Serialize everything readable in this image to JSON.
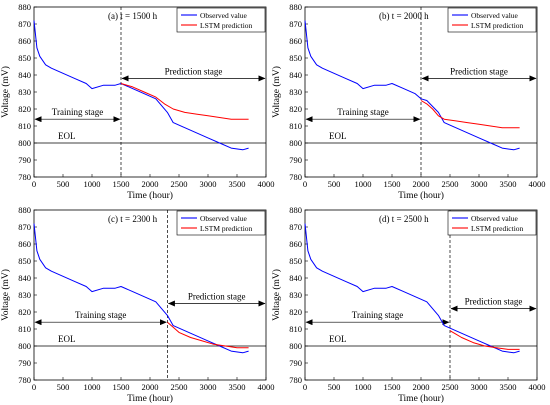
{
  "chart_data": [
    {
      "type": "line",
      "panel_label": "(a) t = 1500 h",
      "xlabel": "Time (hour)",
      "ylabel": "Voltage (mV)",
      "xlim": [
        0,
        4000
      ],
      "ylim": [
        780,
        880
      ],
      "xticks": [
        "0",
        "500",
        "1000",
        "1500",
        "2000",
        "2500",
        "3000",
        "3500",
        "4000"
      ],
      "yticks": [
        "780",
        "790",
        "800",
        "810",
        "820",
        "830",
        "840",
        "850",
        "860",
        "870",
        "880"
      ],
      "legend": {
        "position": "top-right",
        "entries": [
          "Observed value",
          "LSTM prediction"
        ]
      },
      "series": [
        {
          "name": "Observed value",
          "color": "#0000ff",
          "x": [
            0,
            50,
            100,
            200,
            300,
            500,
            700,
            900,
            1000,
            1200,
            1400,
            1500,
            1700,
            1900,
            2100,
            2300,
            2400,
            2600,
            2800,
            3000,
            3200,
            3400,
            3600,
            3700
          ],
          "y": [
            872,
            856,
            851,
            846,
            844,
            841,
            838,
            835,
            832,
            834,
            834,
            835,
            832,
            829,
            826,
            818,
            812,
            809,
            806,
            803,
            800,
            797,
            796,
            797
          ]
        },
        {
          "name": "LSTM prediction",
          "color": "#ff0000",
          "x": [
            1500,
            1700,
            1900,
            2100,
            2250,
            2400,
            2600,
            2800,
            3000,
            3200,
            3400,
            3600,
            3700
          ],
          "y": [
            835,
            833,
            830,
            827,
            823,
            820,
            818,
            817,
            816,
            815,
            814,
            814,
            814
          ]
        }
      ],
      "annotations": {
        "eol_label": "EOL",
        "eol_value": 800,
        "split_time": 1500,
        "training_label": "Training stage",
        "prediction_label": "Prediction stage",
        "training_arrow_y": 814,
        "prediction_arrow_y": 838
      }
    },
    {
      "type": "line",
      "panel_label": "(b) t = 2000 h",
      "xlabel": "Time (hour)",
      "ylabel": "Voltage (mV)",
      "xlim": [
        0,
        4000
      ],
      "ylim": [
        780,
        880
      ],
      "xticks": [
        "0",
        "500",
        "1000",
        "1500",
        "2000",
        "2500",
        "3000",
        "3500",
        "4000"
      ],
      "yticks": [
        "780",
        "790",
        "800",
        "810",
        "820",
        "830",
        "840",
        "850",
        "860",
        "870",
        "880"
      ],
      "legend": {
        "position": "top-right",
        "entries": [
          "Observed value",
          "LSTM prediction"
        ]
      },
      "series": [
        {
          "name": "Observed value",
          "color": "#0000ff",
          "x": [
            0,
            50,
            100,
            200,
            300,
            500,
            700,
            900,
            1000,
            1200,
            1400,
            1500,
            1700,
            1900,
            2000,
            2100,
            2300,
            2400,
            2600,
            2800,
            3000,
            3200,
            3400,
            3600,
            3700
          ],
          "y": [
            872,
            856,
            851,
            846,
            844,
            841,
            838,
            835,
            832,
            834,
            834,
            835,
            832,
            829,
            826,
            825,
            818,
            812,
            809,
            806,
            803,
            800,
            797,
            796,
            797
          ]
        },
        {
          "name": "LSTM prediction",
          "color": "#ff0000",
          "x": [
            2000,
            2100,
            2200,
            2300,
            2400,
            2600,
            2800,
            3000,
            3200,
            3400,
            3600,
            3700
          ],
          "y": [
            825,
            823,
            820,
            816,
            814,
            813,
            812,
            811,
            810,
            809,
            809,
            809
          ]
        }
      ],
      "annotations": {
        "eol_label": "EOL",
        "eol_value": 800,
        "split_time": 2000,
        "training_label": "Training stage",
        "prediction_label": "Prediction stage",
        "training_arrow_y": 814,
        "prediction_arrow_y": 838
      }
    },
    {
      "type": "line",
      "panel_label": "(c) t = 2300 h",
      "xlabel": "Time (hour)",
      "ylabel": "Voltage (mV)",
      "xlim": [
        0,
        4000
      ],
      "ylim": [
        780,
        880
      ],
      "xticks": [
        "0",
        "500",
        "1000",
        "1500",
        "2000",
        "2500",
        "3000",
        "3500",
        "4000"
      ],
      "yticks": [
        "780",
        "790",
        "800",
        "810",
        "820",
        "830",
        "840",
        "850",
        "860",
        "870",
        "880"
      ],
      "legend": {
        "position": "top-right",
        "entries": [
          "Observed value",
          "LSTM prediction"
        ]
      },
      "series": [
        {
          "name": "Observed value",
          "color": "#0000ff",
          "x": [
            0,
            50,
            100,
            200,
            300,
            500,
            700,
            900,
            1000,
            1200,
            1400,
            1500,
            1700,
            1900,
            2100,
            2300,
            2400,
            2600,
            2800,
            3000,
            3200,
            3400,
            3600,
            3700
          ],
          "y": [
            872,
            856,
            851,
            846,
            844,
            841,
            838,
            835,
            832,
            834,
            834,
            835,
            832,
            829,
            826,
            818,
            812,
            809,
            806,
            803,
            800,
            797,
            796,
            797
          ]
        },
        {
          "name": "LSTM prediction",
          "color": "#ff0000",
          "x": [
            2300,
            2400,
            2500,
            2700,
            2900,
            3100,
            3300,
            3500,
            3700
          ],
          "y": [
            814,
            811,
            808,
            805,
            803,
            801,
            800,
            799,
            799
          ]
        }
      ],
      "annotations": {
        "eol_label": "EOL",
        "eol_value": 800,
        "split_time": 2300,
        "training_label": "Training stage",
        "prediction_label": "Prediction stage",
        "training_arrow_y": 814,
        "prediction_arrow_y": 825
      }
    },
    {
      "type": "line",
      "panel_label": "(d) t = 2500 h",
      "xlabel": "Time (hour)",
      "ylabel": "Voltage (mV)",
      "xlim": [
        0,
        4000
      ],
      "ylim": [
        780,
        880
      ],
      "xticks": [
        "0",
        "500",
        "1000",
        "1500",
        "2000",
        "2500",
        "3000",
        "3500",
        "4000"
      ],
      "yticks": [
        "780",
        "790",
        "800",
        "810",
        "820",
        "830",
        "840",
        "850",
        "860",
        "870",
        "880"
      ],
      "legend": {
        "position": "top-right",
        "entries": [
          "Observed value",
          "LSTM prediction"
        ]
      },
      "series": [
        {
          "name": "Observed value",
          "color": "#0000ff",
          "x": [
            0,
            50,
            100,
            200,
            300,
            500,
            700,
            900,
            1000,
            1200,
            1400,
            1500,
            1700,
            1900,
            2100,
            2300,
            2400,
            2600,
            2800,
            3000,
            3200,
            3400,
            3600,
            3700
          ],
          "y": [
            872,
            856,
            851,
            846,
            844,
            841,
            838,
            835,
            832,
            834,
            834,
            835,
            832,
            829,
            826,
            818,
            812,
            809,
            806,
            803,
            800,
            797,
            796,
            797
          ]
        },
        {
          "name": "LSTM prediction",
          "color": "#ff0000",
          "x": [
            2500,
            2600,
            2700,
            2900,
            3100,
            3300,
            3500,
            3700
          ],
          "y": [
            809,
            807,
            805,
            802,
            800,
            799,
            798,
            798
          ]
        }
      ],
      "annotations": {
        "eol_label": "EOL",
        "eol_value": 800,
        "split_time": 2500,
        "training_label": "Training stage",
        "prediction_label": "Prediction stage",
        "training_arrow_y": 814,
        "prediction_arrow_y": 822
      }
    }
  ]
}
